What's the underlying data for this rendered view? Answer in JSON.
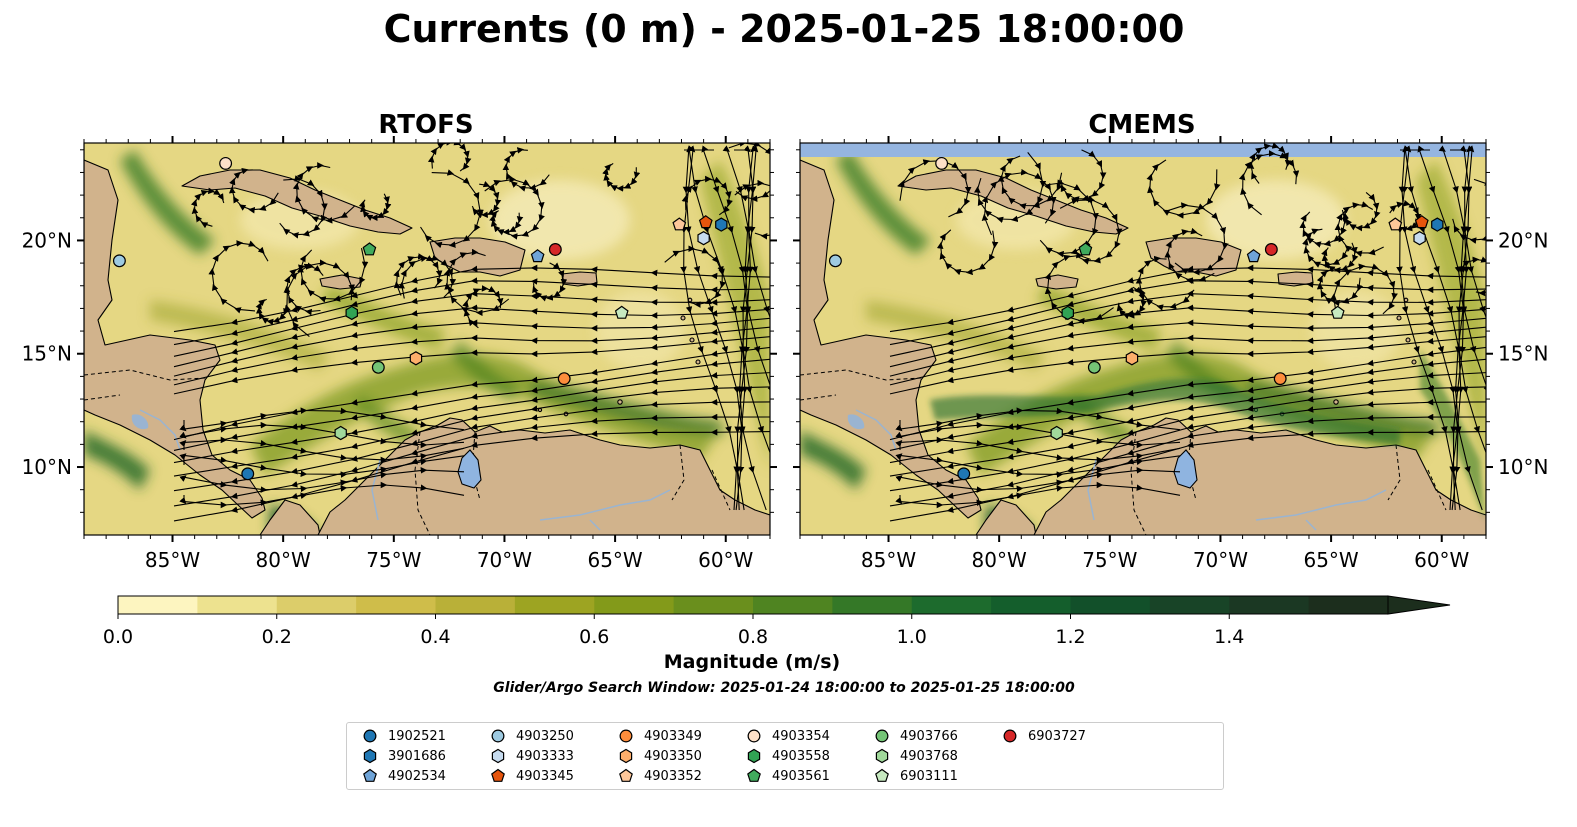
{
  "figure": {
    "title": "Currents (0 m) - 2025-01-25 18:00:00",
    "panels": [
      {
        "title": "RTOFS"
      },
      {
        "title": "CMEMS"
      }
    ],
    "x_ticks": [
      "85°W",
      "80°W",
      "75°W",
      "70°W",
      "65°W",
      "60°W"
    ],
    "y_ticks": [
      "20°N",
      "15°N",
      "10°N"
    ],
    "colorbar": {
      "label": "Magnitude (m/s)",
      "ticks": [
        "0.0",
        "0.2",
        "0.4",
        "0.6",
        "0.8",
        "1.0",
        "1.2",
        "1.4"
      ],
      "colors": [
        "#fdf5c0",
        "#ede28f",
        "#dccd6a",
        "#cfbd4a",
        "#b9b038",
        "#9da422",
        "#839a1a",
        "#6a8f1d",
        "#4f8421",
        "#347827",
        "#1d6b2d",
        "#145e2c",
        "#12502a",
        "#184427",
        "#1b3823",
        "#1c2e1d"
      ]
    },
    "search_window": "Glider/Argo Search Window: 2025-01-24 18:00:00 to 2025-01-25 18:00:00"
  },
  "legend": [
    {
      "label": "1902521",
      "marker": "circle",
      "color": "#1f77b4"
    },
    {
      "label": "3901686",
      "marker": "hexagon",
      "color": "#1f77b4"
    },
    {
      "label": "4902534",
      "marker": "pentagon",
      "color": "#6fa4d8"
    },
    {
      "label": "4903250",
      "marker": "circle",
      "color": "#9ecae1"
    },
    {
      "label": "4903333",
      "marker": "hexagon",
      "color": "#c6dbef"
    },
    {
      "label": "4903345",
      "marker": "pentagon",
      "color": "#e6550d"
    },
    {
      "label": "4903349",
      "marker": "circle",
      "color": "#fd8d3c"
    },
    {
      "label": "4903350",
      "marker": "hexagon",
      "color": "#fdae6b"
    },
    {
      "label": "4903352",
      "marker": "pentagon",
      "color": "#fdc79a"
    },
    {
      "label": "4903354",
      "marker": "circle",
      "color": "#fde0c8"
    },
    {
      "label": "4903558",
      "marker": "hexagon",
      "color": "#31a354"
    },
    {
      "label": "4903561",
      "marker": "pentagon",
      "color": "#41ab5d"
    },
    {
      "label": "4903766",
      "marker": "circle",
      "color": "#74c476"
    },
    {
      "label": "4903768",
      "marker": "hexagon",
      "color": "#a1d99b"
    },
    {
      "label": "6903111",
      "marker": "pentagon",
      "color": "#c7e9c0"
    },
    {
      "label": "6903727",
      "marker": "circle",
      "color": "#d62728"
    }
  ],
  "floats_rtofs": [
    {
      "id": "4903354",
      "lon": -82.6,
      "lat": 23.4
    },
    {
      "id": "4903250",
      "lon": -87.4,
      "lat": 19.1
    },
    {
      "id": "4903561",
      "lon": -76.1,
      "lat": 19.6
    },
    {
      "id": "4903558",
      "lon": -76.9,
      "lat": 16.8
    },
    {
      "id": "4903766",
      "lon": -75.7,
      "lat": 14.4
    },
    {
      "id": "4903350",
      "lon": -74.0,
      "lat": 14.8
    },
    {
      "id": "4903768",
      "lon": -77.4,
      "lat": 11.5
    },
    {
      "id": "1902521",
      "lon": -81.6,
      "lat": 9.7
    },
    {
      "id": "4902534",
      "lon": -68.5,
      "lat": 19.3
    },
    {
      "id": "6903727",
      "lon": -67.7,
      "lat": 19.6
    },
    {
      "id": "4903349",
      "lon": -67.3,
      "lat": 13.9
    },
    {
      "id": "6903111",
      "lon": -64.7,
      "lat": 16.8
    },
    {
      "id": "4903352",
      "lon": -62.1,
      "lat": 20.7
    },
    {
      "id": "4903345",
      "lon": -60.9,
      "lat": 20.8
    },
    {
      "id": "3901686",
      "lon": -60.2,
      "lat": 20.7
    },
    {
      "id": "4903333",
      "lon": -61.0,
      "lat": 20.1
    }
  ],
  "floats_cmems": [
    {
      "id": "4903354",
      "lon": -82.6,
      "lat": 23.4
    },
    {
      "id": "4903250",
      "lon": -87.4,
      "lat": 19.1
    },
    {
      "id": "4903561",
      "lon": -76.1,
      "lat": 19.6
    },
    {
      "id": "4903558",
      "lon": -76.9,
      "lat": 16.8
    },
    {
      "id": "4903766",
      "lon": -75.7,
      "lat": 14.4
    },
    {
      "id": "4903350",
      "lon": -74.0,
      "lat": 14.8
    },
    {
      "id": "4903768",
      "lon": -77.4,
      "lat": 11.5
    },
    {
      "id": "1902521",
      "lon": -81.6,
      "lat": 9.7
    },
    {
      "id": "4902534",
      "lon": -68.5,
      "lat": 19.3
    },
    {
      "id": "6903727",
      "lon": -67.7,
      "lat": 19.6
    },
    {
      "id": "4903349",
      "lon": -67.3,
      "lat": 13.9
    },
    {
      "id": "6903111",
      "lon": -64.7,
      "lat": 16.8
    },
    {
      "id": "4903352",
      "lon": -62.1,
      "lat": 20.7
    },
    {
      "id": "4903345",
      "lon": -60.9,
      "lat": 20.8
    },
    {
      "id": "3901686",
      "lon": -60.2,
      "lat": 20.7
    },
    {
      "id": "4903333",
      "lon": -61.0,
      "lat": 20.1
    }
  ]
}
